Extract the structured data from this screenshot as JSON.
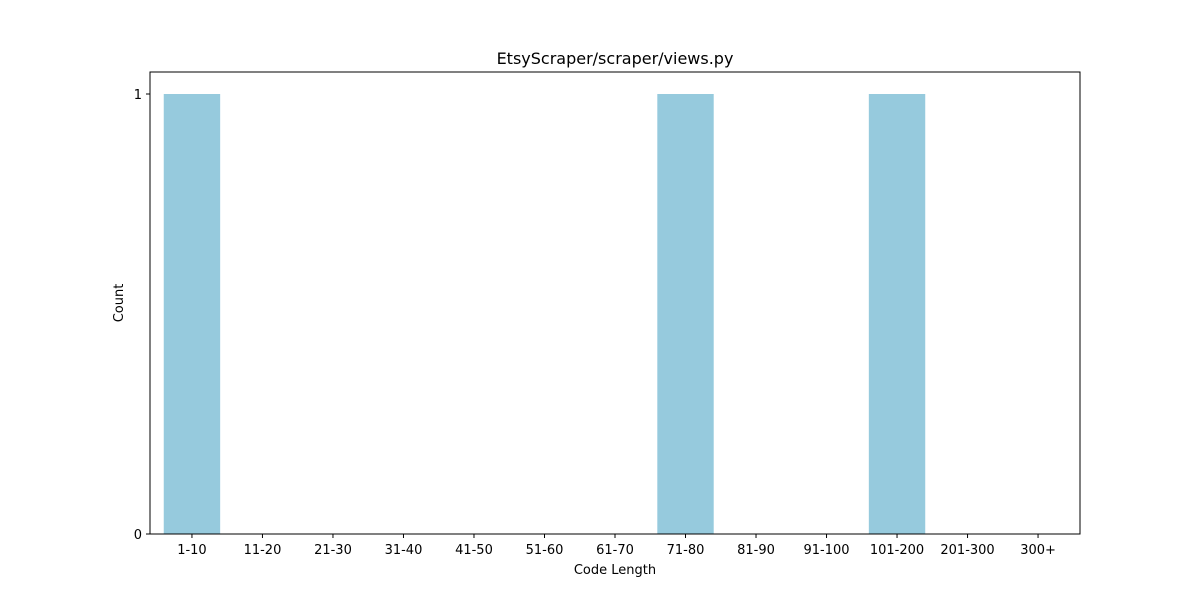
{
  "chart_data": {
    "type": "bar",
    "title": "EtsyScraper/scraper/views.py",
    "xlabel": "Code Length",
    "ylabel": "Count",
    "categories": [
      "1-10",
      "11-20",
      "21-30",
      "31-40",
      "41-50",
      "51-60",
      "61-70",
      "71-80",
      "81-90",
      "91-100",
      "101-200",
      "201-300",
      "300+"
    ],
    "values": [
      1,
      0,
      0,
      0,
      0,
      0,
      0,
      1,
      0,
      0,
      1,
      0,
      0
    ],
    "yticks": [
      0,
      1
    ],
    "ylim": [
      0,
      1.05
    ],
    "grid": false,
    "legend": "none",
    "bar_color": "#96cadd"
  }
}
